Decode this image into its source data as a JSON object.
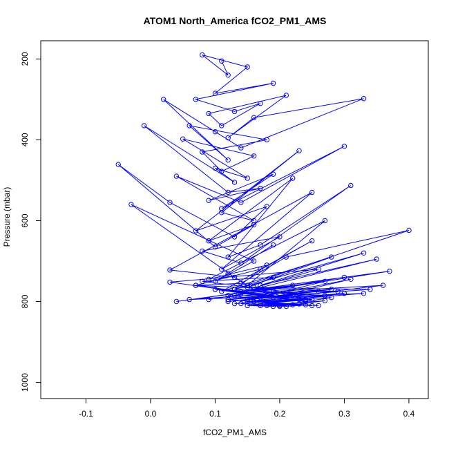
{
  "chart_data": {
    "type": "line",
    "title": "ATOM1 North_America fCO2_PM1_AMS",
    "xlabel": "fCO2_PM1_AMS",
    "ylabel": "Pressure (mbar)",
    "xlim": [
      -0.17,
      0.43
    ],
    "ylim": [
      1040,
      155
    ],
    "y_reversed": true,
    "x_ticks": [
      -0.1,
      0.0,
      0.1,
      0.2,
      0.3,
      0.4
    ],
    "x_tick_labels": [
      "-0.1",
      "0.0",
      "0.1",
      "0.2",
      "0.3",
      "0.4"
    ],
    "y_ticks": [
      200,
      400,
      600,
      800,
      1000
    ],
    "y_tick_labels": [
      "200",
      "400",
      "600",
      "800",
      "1000"
    ],
    "grid": false,
    "marker": "open-circle",
    "color": "#0000ff",
    "series": [
      {
        "x": [
          0.11,
          0.12,
          0.08,
          0.15,
          0.1,
          0.19,
          0.07,
          0.13,
          0.17,
          0.11,
          0.09,
          0.21,
          0.12,
          0.16,
          0.33,
          0.14,
          0.1,
          0.02,
          0.12,
          0.06,
          0.18,
          0.08,
          0.11,
          0.16,
          0.05,
          0.15,
          0.1,
          0.13,
          -0.01,
          0.12,
          0.17,
          0.09,
          0.19,
          0.11,
          0.3,
          0.14,
          0.04,
          0.16,
          0.11,
          0.23,
          0.07,
          0.18,
          0.13,
          0.03,
          -0.05,
          0.1,
          0.16,
          0.09,
          0.22,
          0.12,
          0.17,
          0.31,
          0.14,
          0.08,
          0.2,
          0.11,
          0.25,
          0.03,
          0.13,
          -0.03,
          0.16,
          0.1,
          0.19,
          0.12,
          0.15,
          0.27,
          0.09,
          0.18,
          0.13,
          0.4,
          0.21,
          0.14,
          0.07,
          0.17,
          0.25,
          0.11,
          0.28,
          0.15,
          0.19,
          0.08,
          0.23,
          0.13,
          0.33,
          0.17,
          0.35,
          0.12,
          0.26,
          0.03,
          0.2,
          0.16,
          0.37,
          0.09,
          0.3,
          0.14,
          0.22,
          0.04,
          0.27,
          0.18,
          0.12,
          0.34,
          0.16,
          0.21,
          0.07,
          0.29,
          0.14,
          0.24,
          0.1,
          0.19,
          0.31,
          0.15,
          0.26,
          0.12,
          0.22,
          0.06,
          0.28,
          0.17,
          0.33,
          0.13,
          0.24,
          0.19,
          0.36,
          0.15,
          0.27,
          0.1,
          0.21,
          0.3,
          0.17,
          0.25,
          0.13,
          0.2,
          0.28,
          0.15,
          0.23,
          0.18,
          0.26,
          0.12,
          0.22,
          0.16,
          0.25,
          0.14,
          0.2,
          0.27,
          0.17,
          0.23,
          0.19,
          0.15,
          0.24,
          0.21,
          0.18
        ],
        "y": [
          205,
          240,
          190,
          220,
          285,
          260,
          300,
          330,
          310,
          365,
          335,
          290,
          395,
          345,
          298,
          420,
          380,
          300,
          450,
          365,
          400,
          430,
          478,
          440,
          398,
          495,
          470,
          505,
          365,
          530,
          520,
          550,
          485,
          570,
          416,
          555,
          490,
          600,
          580,
          427,
          625,
          565,
          640,
          555,
          461,
          665,
          610,
          650,
          495,
          690,
          660,
          513,
          705,
          675,
          640,
          720,
          530,
          722,
          740,
          560,
          700,
          750,
          660,
          730,
          760,
          600,
          745,
          710,
          770,
          624,
          690,
          755,
          760,
          720,
          650,
          775,
          690,
          765,
          740,
          750,
          780,
          770,
          680,
          760,
          695,
          785,
          720,
          752,
          790,
          770,
          725,
          795,
          740,
          775,
          760,
          800,
          750,
          785,
          795,
          770,
          765,
          790,
          760,
          775,
          780,
          800,
          770,
          790,
          745,
          795,
          775,
          800,
          785,
          795,
          770,
          790,
          780,
          805,
          795,
          775,
          760,
          800,
          785,
          770,
          790,
          780,
          805,
          795,
          785,
          810,
          790,
          800,
          795,
          805,
          810,
          795,
          808,
          800,
          810,
          805,
          812,
          798,
          810,
          806,
          812,
          810,
          808,
          812,
          810
        ]
      }
    ]
  }
}
